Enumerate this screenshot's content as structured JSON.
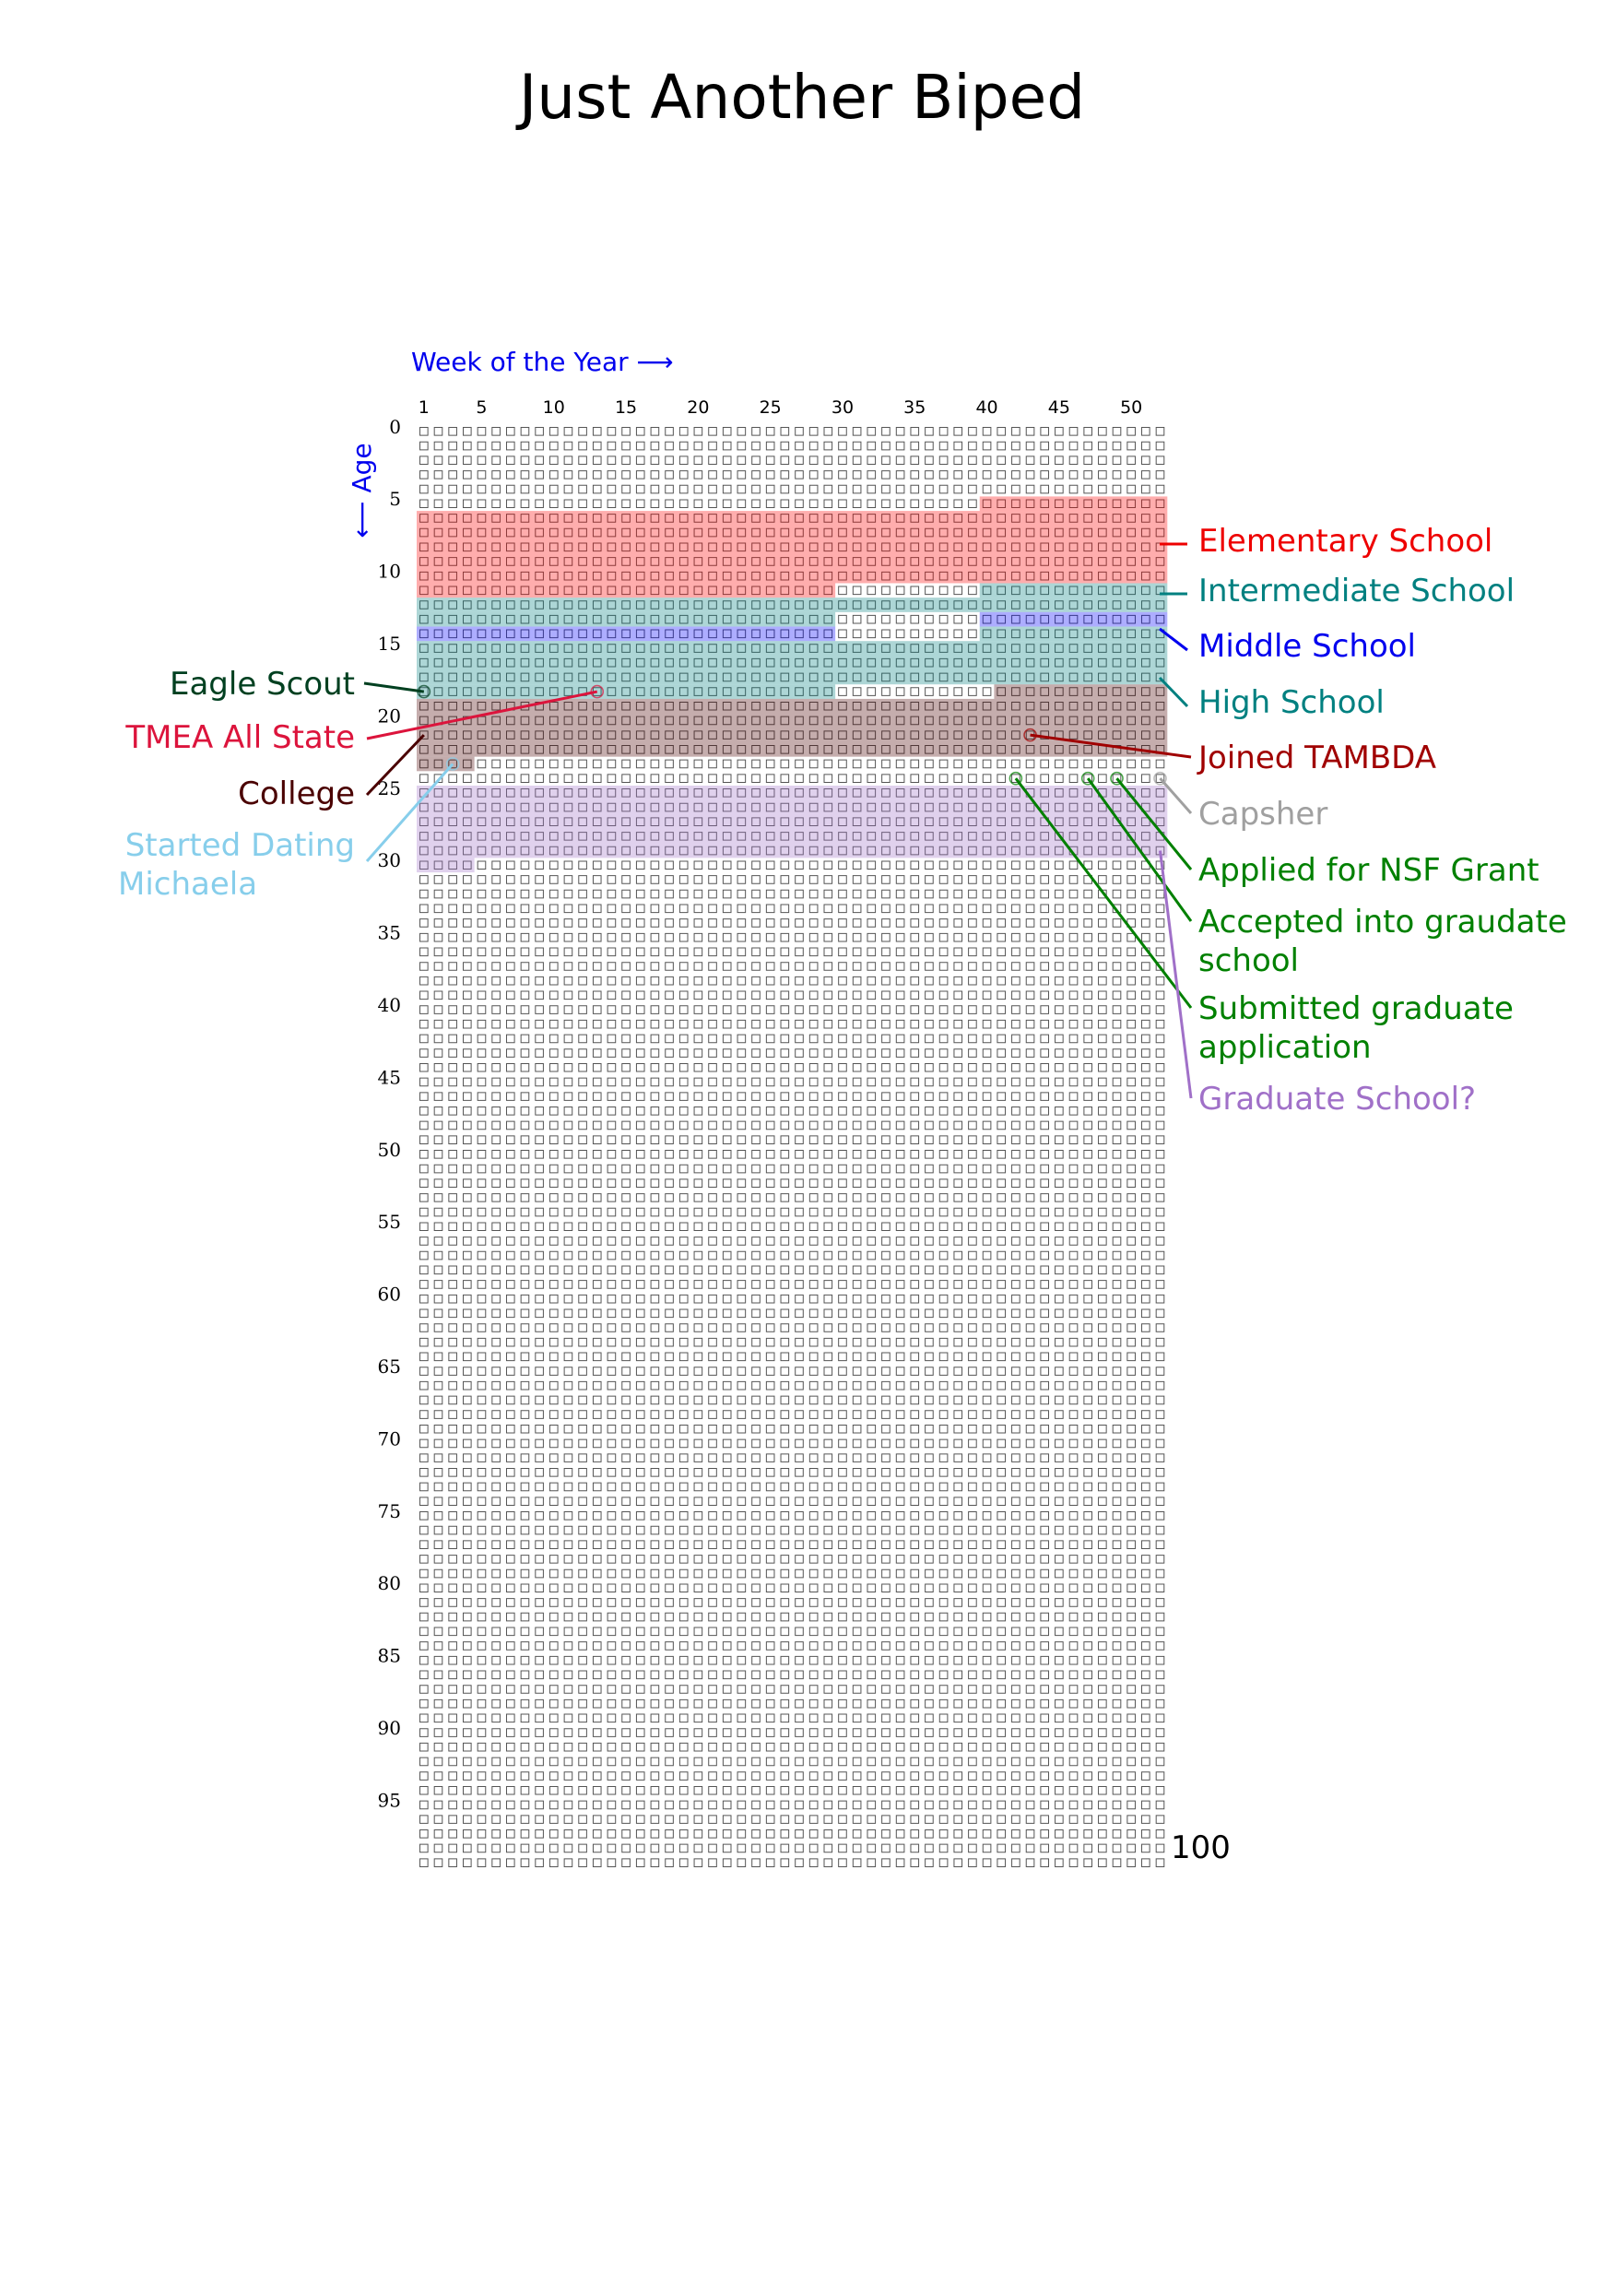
{
  "chart_data": {
    "type": "heatmap",
    "title": "Just Another Biped",
    "xlabel": "Week of the Year",
    "ylabel": "Age",
    "x_range": [
      1,
      52
    ],
    "y_range": [
      0,
      99
    ],
    "x_ticks": [
      1,
      5,
      10,
      15,
      20,
      25,
      30,
      35,
      40,
      45,
      50
    ],
    "y_ticks": [
      0,
      5,
      10,
      15,
      20,
      25,
      30,
      35,
      40,
      45,
      50,
      55,
      60,
      65,
      70,
      75,
      80,
      85,
      90,
      95
    ],
    "end_label": "100",
    "periods": [
      {
        "name": "Elementary School",
        "color": "#ff0000",
        "start": {
          "age": 5,
          "week": 40
        },
        "end": {
          "age": 11,
          "week": 29
        }
      },
      {
        "name": "Intermediate School",
        "color": "#008080",
        "start": {
          "age": 11,
          "week": 40
        },
        "end": {
          "age": 13,
          "week": 29
        }
      },
      {
        "name": "Middle School",
        "color": "#0000ff",
        "start": {
          "age": 13,
          "week": 40
        },
        "end": {
          "age": 14,
          "week": 29
        }
      },
      {
        "name": "High School",
        "color": "#008080",
        "start": {
          "age": 14,
          "week": 40
        },
        "end": {
          "age": 18,
          "week": 29
        }
      },
      {
        "name": "College",
        "color": "#4a0000",
        "start": {
          "age": 18,
          "week": 41
        },
        "end": {
          "age": 23,
          "week": 4
        }
      },
      {
        "name": "Graduate School?",
        "color": "#a070c8",
        "start": {
          "age": 25,
          "week": 1
        },
        "end": {
          "age": 30,
          "week": 4
        }
      }
    ],
    "events": [
      {
        "name": "Eagle Scout",
        "color": "#004020",
        "age": 18,
        "week": 1
      },
      {
        "name": "TMEA All State",
        "color": "#dc143c",
        "age": 18,
        "week": 13
      },
      {
        "name": "Started Dating Michaela",
        "color": "#87ceeb",
        "age": 23,
        "week": 3
      },
      {
        "name": "Joined TAMBDA",
        "color": "#a00000",
        "age": 21,
        "week": 43
      },
      {
        "name": "Capsher",
        "color": "#a0a0a0",
        "age": 24,
        "week": 52
      },
      {
        "name": "Applied for NSF Grant",
        "color": "#008000",
        "age": 24,
        "week": 49
      },
      {
        "name": "Accepted into graudate school",
        "color": "#008000",
        "age": 24,
        "week": 47
      },
      {
        "name": "Submitted graduate application",
        "color": "#008000",
        "age": 24,
        "week": 42
      }
    ],
    "labels": {
      "right": [
        {
          "text": "Elementary School",
          "color": "#ee0000",
          "series": "Elementary School"
        },
        {
          "text": "Intermediate School",
          "color": "#008080",
          "series": "Intermediate School"
        },
        {
          "text": "Middle School",
          "color": "#0000ee",
          "series": "Middle School"
        },
        {
          "text": "High School",
          "color": "#008080",
          "series": "High School"
        },
        {
          "text": "Joined TAMBDA",
          "color": "#a00000",
          "series": "Joined TAMBDA"
        },
        {
          "text": "Capsher",
          "color": "#a0a0a0",
          "series": "Capsher"
        },
        {
          "text": "Applied for NSF Grant",
          "color": "#008000",
          "series": "Applied for NSF Grant"
        },
        {
          "text": "Accepted into graudate school",
          "color": "#008000",
          "series": "Accepted into graudate school"
        },
        {
          "text": "Submitted graduate application",
          "color": "#008000",
          "series": "Submitted graduate application"
        },
        {
          "text": "Graduate School?",
          "color": "#a070c8",
          "series": "Graduate School?"
        }
      ],
      "left": [
        {
          "text": "Eagle Scout",
          "color": "#004020",
          "series": "Eagle Scout"
        },
        {
          "text": "TMEA All State",
          "color": "#dc143c",
          "series": "TMEA All State"
        },
        {
          "text": "College",
          "color": "#4a0000",
          "series": "College"
        },
        {
          "text": "Started Dating Michaela",
          "color": "#87ceeb",
          "series": "Started Dating Michaela"
        }
      ]
    },
    "axis_color": "#0000ee"
  }
}
